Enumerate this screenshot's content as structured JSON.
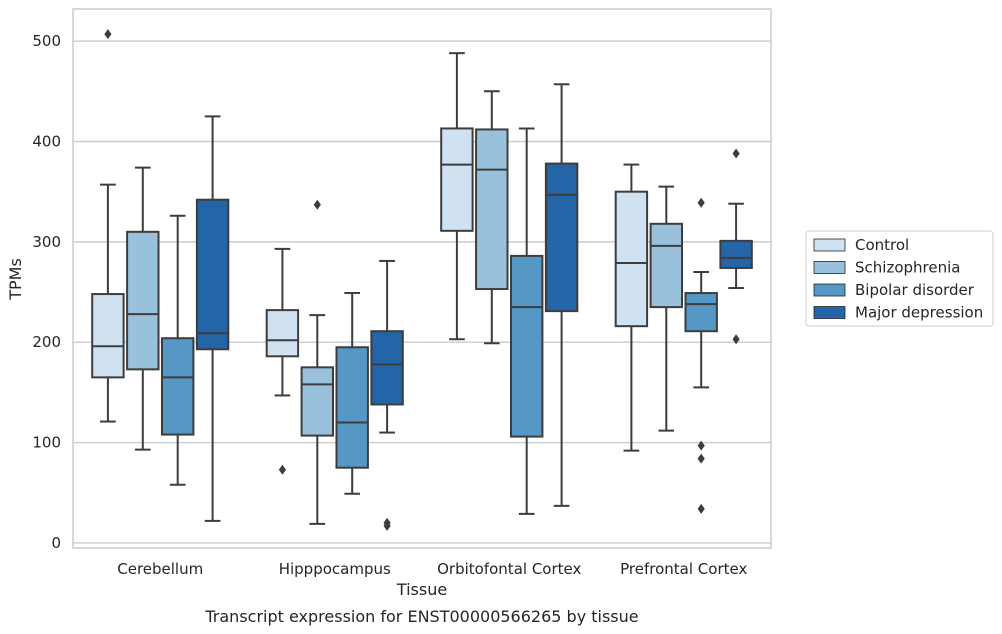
{
  "caption": "Transcript expression for ENST00000566265 by tissue",
  "chart_data": {
    "type": "box",
    "xlabel": "Tissue",
    "ylabel": "TPMs",
    "ylim": [
      -5,
      532
    ],
    "yticks": [
      0,
      100,
      200,
      300,
      400,
      500
    ],
    "grid": "horizontal",
    "legend_position": "right",
    "categories": [
      "Cerebellum",
      "Hipppocampus",
      "Orbitofontal Cortex",
      "Prefrontal Cortex"
    ],
    "series": [
      {
        "name": "Control",
        "color": "#d0e1f2",
        "boxes": [
          {
            "whisker_low": 121,
            "q1": 165,
            "median": 196,
            "q3": 248,
            "whisker_high": 357,
            "outliers": [
              507
            ]
          },
          {
            "whisker_low": 147,
            "q1": 186,
            "median": 202,
            "q3": 232,
            "whisker_high": 293,
            "outliers": [
              73
            ]
          },
          {
            "whisker_low": 203,
            "q1": 311,
            "median": 377,
            "q3": 413,
            "whisker_high": 488,
            "outliers": []
          },
          {
            "whisker_low": 92,
            "q1": 216,
            "median": 279,
            "q3": 350,
            "whisker_high": 377,
            "outliers": []
          }
        ]
      },
      {
        "name": "Schizophrenia",
        "color": "#9ac1dc",
        "boxes": [
          {
            "whisker_low": 93,
            "q1": 173,
            "median": 228,
            "q3": 310,
            "whisker_high": 374,
            "outliers": []
          },
          {
            "whisker_low": 19,
            "q1": 107,
            "median": 158,
            "q3": 175,
            "whisker_high": 227,
            "outliers": [
              337
            ]
          },
          {
            "whisker_low": 199,
            "q1": 253,
            "median": 372,
            "q3": 412,
            "whisker_high": 450,
            "outliers": []
          },
          {
            "whisker_low": 112,
            "q1": 235,
            "median": 296,
            "q3": 318,
            "whisker_high": 355,
            "outliers": []
          }
        ]
      },
      {
        "name": "Bipolar disorder",
        "color": "#5597c5",
        "boxes": [
          {
            "whisker_low": 58,
            "q1": 108,
            "median": 165,
            "q3": 204,
            "whisker_high": 326,
            "outliers": []
          },
          {
            "whisker_low": 49,
            "q1": 75,
            "median": 120,
            "q3": 195,
            "whisker_high": 249,
            "outliers": []
          },
          {
            "whisker_low": 29,
            "q1": 106,
            "median": 235,
            "q3": 286,
            "whisker_high": 413,
            "outliers": []
          },
          {
            "whisker_low": 155,
            "q1": 211,
            "median": 238,
            "q3": 249,
            "whisker_high": 270,
            "outliers": [
              339,
              97,
              84,
              34
            ]
          }
        ]
      },
      {
        "name": "Major depression",
        "color": "#2465a7",
        "boxes": [
          {
            "whisker_low": 22,
            "q1": 193,
            "median": 209,
            "q3": 342,
            "whisker_high": 425,
            "outliers": []
          },
          {
            "whisker_low": 110,
            "q1": 138,
            "median": 178,
            "q3": 211,
            "whisker_high": 281,
            "outliers": [
              20,
              17
            ]
          },
          {
            "whisker_low": 37,
            "q1": 231,
            "median": 347,
            "q3": 378,
            "whisker_high": 457,
            "outliers": []
          },
          {
            "whisker_low": 254,
            "q1": 274,
            "median": 284,
            "q3": 301,
            "whisker_high": 338,
            "outliers": [
              388,
              203
            ]
          }
        ]
      }
    ]
  }
}
